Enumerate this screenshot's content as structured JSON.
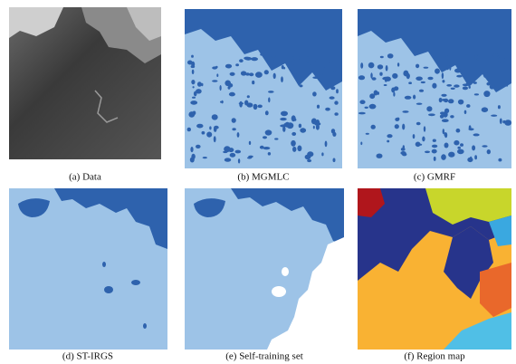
{
  "figure": {
    "panels": [
      {
        "caption": "(a) Data"
      },
      {
        "caption": "(b) MGMLC"
      },
      {
        "caption": "(c) GMRF"
      },
      {
        "caption": "(d) ST-IRGS"
      },
      {
        "caption": "(e) Self-training set"
      },
      {
        "caption": "(f) Region map"
      }
    ]
  }
}
